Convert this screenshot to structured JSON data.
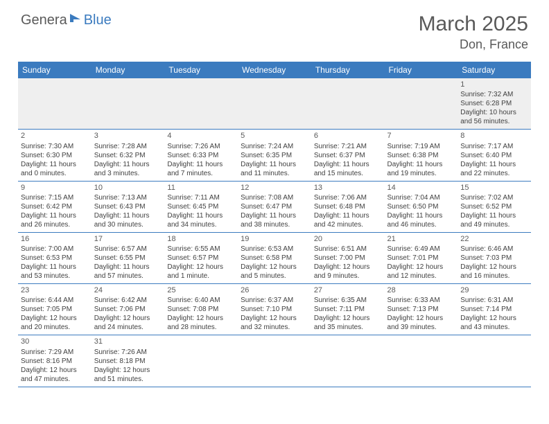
{
  "logo": {
    "part1": "Genera",
    "part2": "Blue"
  },
  "title": "March 2025",
  "location": "Don, France",
  "colors": {
    "header_bg": "#3b7bbf",
    "header_text": "#ffffff",
    "text": "#404040",
    "title_text": "#595959",
    "row_border": "#3b7bbf",
    "blank_row_bg": "#efefef"
  },
  "day_names": [
    "Sunday",
    "Monday",
    "Tuesday",
    "Wednesday",
    "Thursday",
    "Friday",
    "Saturday"
  ],
  "weeks": [
    [
      null,
      null,
      null,
      null,
      null,
      null,
      {
        "n": "1",
        "sr": "Sunrise: 7:32 AM",
        "ss": "Sunset: 6:28 PM",
        "dl1": "Daylight: 10 hours",
        "dl2": "and 56 minutes."
      }
    ],
    [
      {
        "n": "2",
        "sr": "Sunrise: 7:30 AM",
        "ss": "Sunset: 6:30 PM",
        "dl1": "Daylight: 11 hours",
        "dl2": "and 0 minutes."
      },
      {
        "n": "3",
        "sr": "Sunrise: 7:28 AM",
        "ss": "Sunset: 6:32 PM",
        "dl1": "Daylight: 11 hours",
        "dl2": "and 3 minutes."
      },
      {
        "n": "4",
        "sr": "Sunrise: 7:26 AM",
        "ss": "Sunset: 6:33 PM",
        "dl1": "Daylight: 11 hours",
        "dl2": "and 7 minutes."
      },
      {
        "n": "5",
        "sr": "Sunrise: 7:24 AM",
        "ss": "Sunset: 6:35 PM",
        "dl1": "Daylight: 11 hours",
        "dl2": "and 11 minutes."
      },
      {
        "n": "6",
        "sr": "Sunrise: 7:21 AM",
        "ss": "Sunset: 6:37 PM",
        "dl1": "Daylight: 11 hours",
        "dl2": "and 15 minutes."
      },
      {
        "n": "7",
        "sr": "Sunrise: 7:19 AM",
        "ss": "Sunset: 6:38 PM",
        "dl1": "Daylight: 11 hours",
        "dl2": "and 19 minutes."
      },
      {
        "n": "8",
        "sr": "Sunrise: 7:17 AM",
        "ss": "Sunset: 6:40 PM",
        "dl1": "Daylight: 11 hours",
        "dl2": "and 22 minutes."
      }
    ],
    [
      {
        "n": "9",
        "sr": "Sunrise: 7:15 AM",
        "ss": "Sunset: 6:42 PM",
        "dl1": "Daylight: 11 hours",
        "dl2": "and 26 minutes."
      },
      {
        "n": "10",
        "sr": "Sunrise: 7:13 AM",
        "ss": "Sunset: 6:43 PM",
        "dl1": "Daylight: 11 hours",
        "dl2": "and 30 minutes."
      },
      {
        "n": "11",
        "sr": "Sunrise: 7:11 AM",
        "ss": "Sunset: 6:45 PM",
        "dl1": "Daylight: 11 hours",
        "dl2": "and 34 minutes."
      },
      {
        "n": "12",
        "sr": "Sunrise: 7:08 AM",
        "ss": "Sunset: 6:47 PM",
        "dl1": "Daylight: 11 hours",
        "dl2": "and 38 minutes."
      },
      {
        "n": "13",
        "sr": "Sunrise: 7:06 AM",
        "ss": "Sunset: 6:48 PM",
        "dl1": "Daylight: 11 hours",
        "dl2": "and 42 minutes."
      },
      {
        "n": "14",
        "sr": "Sunrise: 7:04 AM",
        "ss": "Sunset: 6:50 PM",
        "dl1": "Daylight: 11 hours",
        "dl2": "and 46 minutes."
      },
      {
        "n": "15",
        "sr": "Sunrise: 7:02 AM",
        "ss": "Sunset: 6:52 PM",
        "dl1": "Daylight: 11 hours",
        "dl2": "and 49 minutes."
      }
    ],
    [
      {
        "n": "16",
        "sr": "Sunrise: 7:00 AM",
        "ss": "Sunset: 6:53 PM",
        "dl1": "Daylight: 11 hours",
        "dl2": "and 53 minutes."
      },
      {
        "n": "17",
        "sr": "Sunrise: 6:57 AM",
        "ss": "Sunset: 6:55 PM",
        "dl1": "Daylight: 11 hours",
        "dl2": "and 57 minutes."
      },
      {
        "n": "18",
        "sr": "Sunrise: 6:55 AM",
        "ss": "Sunset: 6:57 PM",
        "dl1": "Daylight: 12 hours",
        "dl2": "and 1 minute."
      },
      {
        "n": "19",
        "sr": "Sunrise: 6:53 AM",
        "ss": "Sunset: 6:58 PM",
        "dl1": "Daylight: 12 hours",
        "dl2": "and 5 minutes."
      },
      {
        "n": "20",
        "sr": "Sunrise: 6:51 AM",
        "ss": "Sunset: 7:00 PM",
        "dl1": "Daylight: 12 hours",
        "dl2": "and 9 minutes."
      },
      {
        "n": "21",
        "sr": "Sunrise: 6:49 AM",
        "ss": "Sunset: 7:01 PM",
        "dl1": "Daylight: 12 hours",
        "dl2": "and 12 minutes."
      },
      {
        "n": "22",
        "sr": "Sunrise: 6:46 AM",
        "ss": "Sunset: 7:03 PM",
        "dl1": "Daylight: 12 hours",
        "dl2": "and 16 minutes."
      }
    ],
    [
      {
        "n": "23",
        "sr": "Sunrise: 6:44 AM",
        "ss": "Sunset: 7:05 PM",
        "dl1": "Daylight: 12 hours",
        "dl2": "and 20 minutes."
      },
      {
        "n": "24",
        "sr": "Sunrise: 6:42 AM",
        "ss": "Sunset: 7:06 PM",
        "dl1": "Daylight: 12 hours",
        "dl2": "and 24 minutes."
      },
      {
        "n": "25",
        "sr": "Sunrise: 6:40 AM",
        "ss": "Sunset: 7:08 PM",
        "dl1": "Daylight: 12 hours",
        "dl2": "and 28 minutes."
      },
      {
        "n": "26",
        "sr": "Sunrise: 6:37 AM",
        "ss": "Sunset: 7:10 PM",
        "dl1": "Daylight: 12 hours",
        "dl2": "and 32 minutes."
      },
      {
        "n": "27",
        "sr": "Sunrise: 6:35 AM",
        "ss": "Sunset: 7:11 PM",
        "dl1": "Daylight: 12 hours",
        "dl2": "and 35 minutes."
      },
      {
        "n": "28",
        "sr": "Sunrise: 6:33 AM",
        "ss": "Sunset: 7:13 PM",
        "dl1": "Daylight: 12 hours",
        "dl2": "and 39 minutes."
      },
      {
        "n": "29",
        "sr": "Sunrise: 6:31 AM",
        "ss": "Sunset: 7:14 PM",
        "dl1": "Daylight: 12 hours",
        "dl2": "and 43 minutes."
      }
    ],
    [
      {
        "n": "30",
        "sr": "Sunrise: 7:29 AM",
        "ss": "Sunset: 8:16 PM",
        "dl1": "Daylight: 12 hours",
        "dl2": "and 47 minutes."
      },
      {
        "n": "31",
        "sr": "Sunrise: 7:26 AM",
        "ss": "Sunset: 8:18 PM",
        "dl1": "Daylight: 12 hours",
        "dl2": "and 51 minutes."
      },
      null,
      null,
      null,
      null,
      null
    ]
  ]
}
